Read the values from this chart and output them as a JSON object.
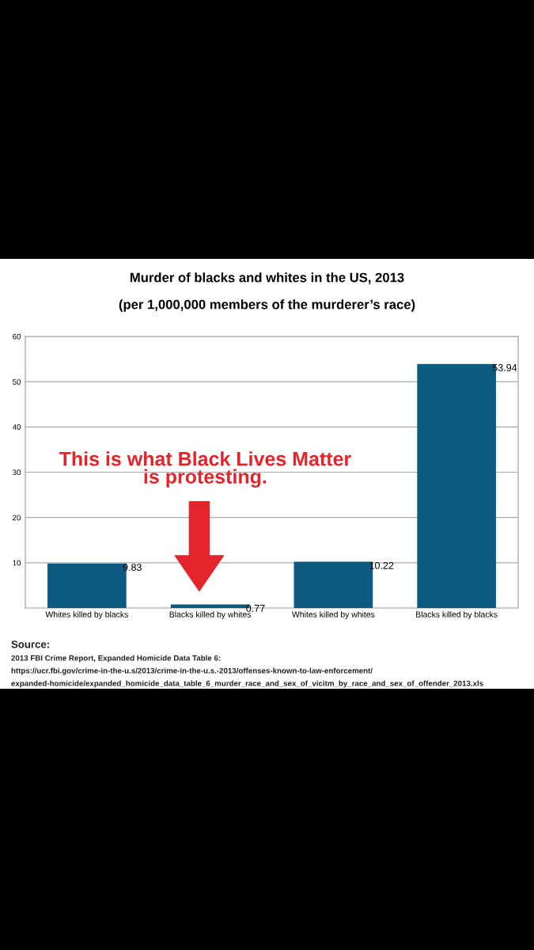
{
  "chart_data": {
    "type": "bar",
    "title": "Murder of blacks and whites in the US, 2013",
    "subtitle": "(per 1,000,000 members of the murderer’s race)",
    "categories": [
      "Whites killed by blacks",
      "Blacks killed by whites",
      "Whites killed by whites",
      "Blacks killed by blacks"
    ],
    "values": [
      9.83,
      0.77,
      10.22,
      53.94
    ],
    "color": "#0e5b82",
    "data_labels": true,
    "ylim": [
      0,
      60
    ],
    "yticks": [
      10,
      20,
      30,
      40,
      50,
      60
    ],
    "grid": "y",
    "annotations": [
      "This is what Black Lives Matter\nis protesting.",
      "Source:",
      "2013 FBI Crime Report, Expanded Homicide Data Table 6:",
      "https://ucr.fbi.gov/crime-in-the-u.s/2013/crime-in-the-u.s.-2013/offenses-known-to-law-enforcement/",
      "expanded-homicide/expanded_homicide_data_table_6_murder_race_and_sex_of_vicitm_by_race_and_sex_of_offender_2013.xls"
    ]
  }
}
